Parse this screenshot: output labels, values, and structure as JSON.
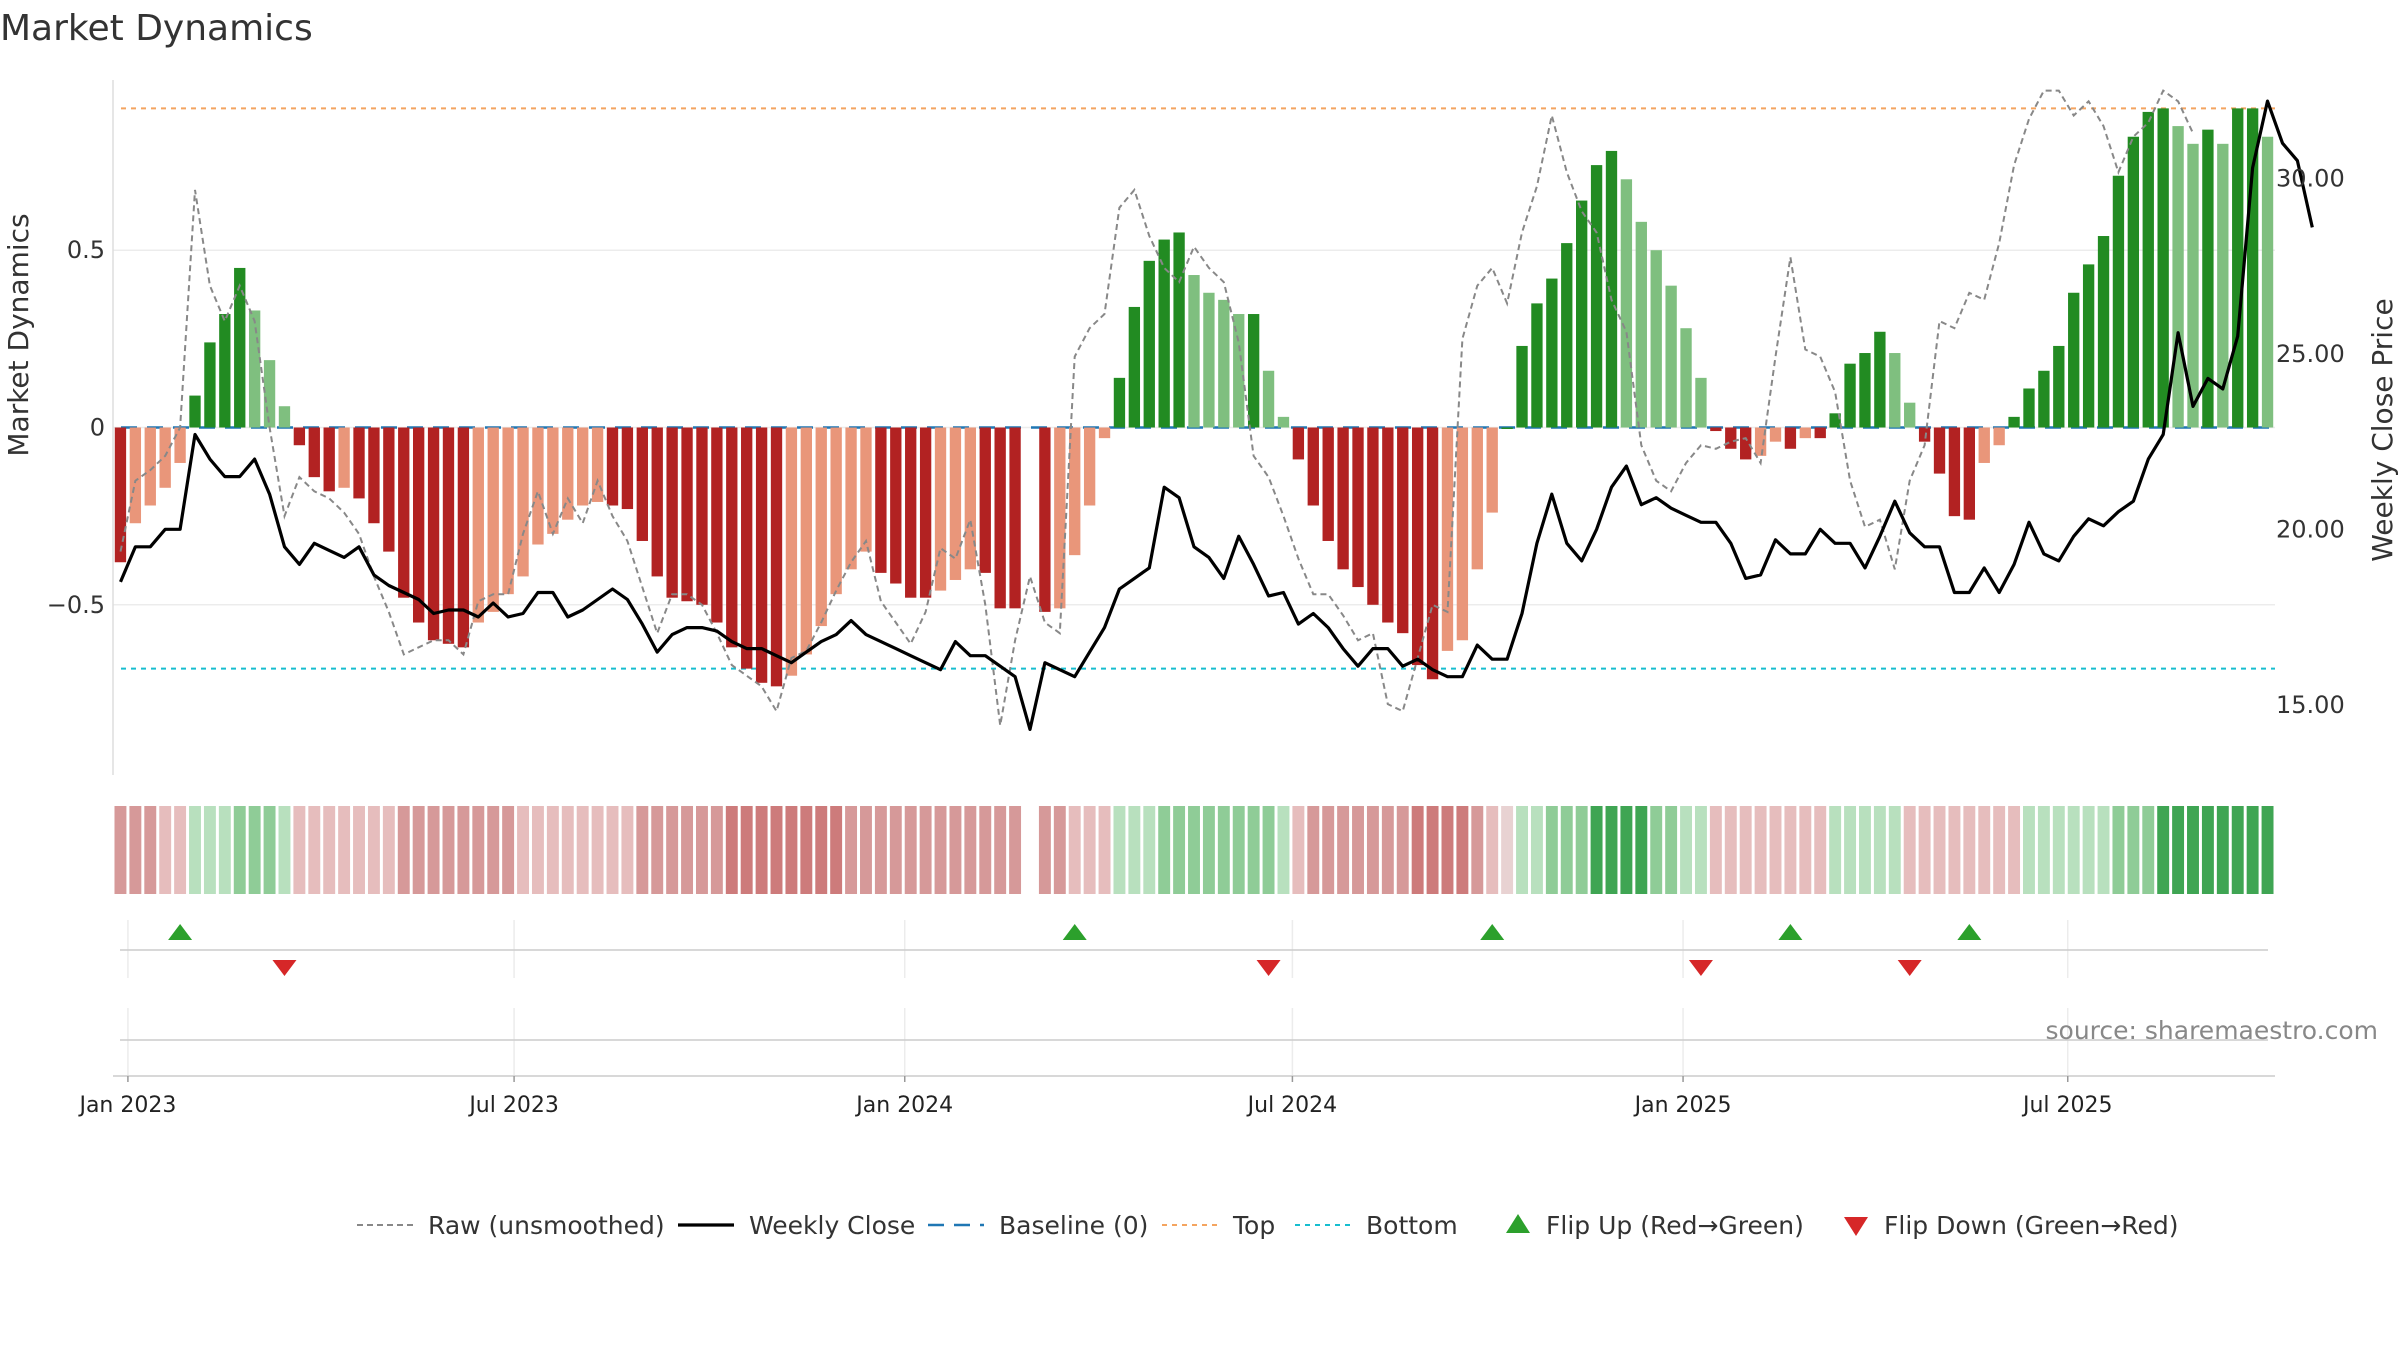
{
  "chart_data": {
    "type": "bar",
    "title": "Market Dynamics",
    "ylabel_left": "Market Dynamics",
    "ylabel_right": "Weekly Close Price",
    "ylim_left": [
      -0.98,
      0.98
    ],
    "ylim_right": [
      13.0,
      32.8
    ],
    "yticks_left": [
      {
        "value": 0.5,
        "label": "0.5"
      },
      {
        "value": 0,
        "label": "0"
      },
      {
        "value": -0.5,
        "label": "−0.5"
      }
    ],
    "yticks_right": [
      {
        "value": 30,
        "label": "30.00"
      },
      {
        "value": 25,
        "label": "25.00"
      },
      {
        "value": 20,
        "label": "20.00"
      },
      {
        "value": 15,
        "label": "15.00"
      }
    ],
    "xticks": [
      {
        "week": 0.5,
        "label": "Jan 2023"
      },
      {
        "week": 26.4,
        "label": "Jul 2023"
      },
      {
        "week": 52.6,
        "label": "Jan 2024"
      },
      {
        "week": 78.6,
        "label": "Jul 2024"
      },
      {
        "week": 104.8,
        "label": "Jan 2025"
      },
      {
        "week": 130.6,
        "label": "Jul 2025"
      }
    ],
    "top_line": 0.9,
    "bottom_line": -0.68,
    "baseline": 0,
    "bar_colors": {
      "strong_up": "#228B22",
      "weak_up": "#7FBF7F",
      "strong_down": "#B22222",
      "weak_down": "#E9967A"
    },
    "momentum": [
      -0.38,
      -0.27,
      -0.22,
      -0.17,
      -0.1,
      0.09,
      0.24,
      0.32,
      0.45,
      0.33,
      0.19,
      0.06,
      -0.05,
      -0.14,
      -0.18,
      -0.17,
      -0.2,
      -0.27,
      -0.35,
      -0.48,
      -0.55,
      -0.6,
      -0.61,
      -0.62,
      -0.55,
      -0.52,
      -0.47,
      -0.42,
      -0.33,
      -0.3,
      -0.26,
      -0.22,
      -0.21,
      -0.22,
      -0.23,
      -0.32,
      -0.42,
      -0.48,
      -0.49,
      -0.5,
      -0.55,
      -0.62,
      -0.68,
      -0.72,
      -0.73,
      -0.7,
      -0.64,
      -0.56,
      -0.47,
      -0.4,
      -0.35,
      -0.41,
      -0.44,
      -0.48,
      -0.48,
      -0.46,
      -0.43,
      -0.4,
      -0.41,
      -0.51,
      -0.51,
      null,
      -0.52,
      -0.51,
      -0.36,
      -0.22,
      -0.03,
      0.14,
      0.34,
      0.47,
      0.53,
      0.55,
      0.43,
      0.38,
      0.36,
      0.32,
      0.32,
      0.16,
      0.03,
      -0.09,
      -0.22,
      -0.32,
      -0.4,
      -0.45,
      -0.5,
      -0.55,
      -0.58,
      -0.67,
      -0.71,
      -0.63,
      -0.6,
      -0.4,
      -0.24,
      0.0,
      0.23,
      0.35,
      0.42,
      0.52,
      0.64,
      0.74,
      0.78,
      0.7,
      0.58,
      0.5,
      0.4,
      0.28,
      0.14,
      -0.01,
      -0.06,
      -0.09,
      -0.08,
      -0.04,
      -0.06,
      -0.03,
      -0.03,
      0.04,
      0.18,
      0.21,
      0.27,
      0.21,
      0.07,
      -0.04,
      -0.13,
      -0.25,
      -0.26,
      -0.1,
      -0.05,
      0.03,
      0.11,
      0.16,
      0.23,
      0.38,
      0.46,
      0.54,
      0.71,
      0.82,
      0.89,
      0.9,
      0.85,
      0.8,
      0.84,
      0.8,
      0.9,
      0.9,
      0.82
    ],
    "raw": [
      -0.35,
      -0.15,
      -0.12,
      -0.08,
      0.0,
      0.67,
      0.4,
      0.3,
      0.4,
      0.3,
      0.0,
      -0.25,
      -0.14,
      -0.18,
      -0.2,
      -0.24,
      -0.3,
      -0.42,
      -0.52,
      -0.64,
      -0.62,
      -0.6,
      -0.6,
      -0.64,
      -0.49,
      -0.47,
      -0.47,
      -0.3,
      -0.18,
      -0.3,
      -0.2,
      -0.27,
      -0.15,
      -0.25,
      -0.32,
      -0.45,
      -0.58,
      -0.47,
      -0.47,
      -0.5,
      -0.58,
      -0.67,
      -0.7,
      -0.73,
      -0.8,
      -0.65,
      -0.63,
      -0.55,
      -0.46,
      -0.38,
      -0.32,
      -0.49,
      -0.55,
      -0.61,
      -0.52,
      -0.34,
      -0.37,
      -0.26,
      -0.5,
      -0.84,
      -0.6,
      -0.42,
      -0.55,
      -0.58,
      0.2,
      0.28,
      0.32,
      0.62,
      0.67,
      0.54,
      0.45,
      0.41,
      0.51,
      0.45,
      0.41,
      0.24,
      -0.08,
      -0.14,
      -0.25,
      -0.37,
      -0.47,
      -0.47,
      -0.53,
      -0.6,
      -0.58,
      -0.78,
      -0.8,
      -0.65,
      -0.5,
      -0.52,
      0.25,
      0.4,
      0.45,
      0.35,
      0.55,
      0.68,
      0.88,
      0.72,
      0.61,
      0.55,
      0.36,
      0.27,
      -0.05,
      -0.15,
      -0.18,
      -0.1,
      -0.05,
      -0.06,
      -0.04,
      -0.03,
      -0.1,
      0.2,
      0.48,
      0.22,
      0.2,
      0.1,
      -0.15,
      -0.28,
      -0.26,
      -0.4,
      -0.15,
      -0.05,
      0.3,
      0.28,
      0.38,
      0.36,
      0.52,
      0.74,
      0.87,
      0.95,
      0.95,
      0.88,
      0.92,
      0.85,
      0.72,
      0.82,
      0.86,
      0.95,
      0.92,
      0.83
    ],
    "close": [
      18.5,
      19.5,
      19.5,
      20.0,
      20.0,
      22.7,
      22.0,
      21.5,
      21.5,
      22.0,
      21.0,
      19.5,
      19.0,
      19.6,
      19.4,
      19.2,
      19.5,
      18.7,
      18.4,
      18.2,
      18.0,
      17.6,
      17.7,
      17.7,
      17.5,
      17.9,
      17.5,
      17.6,
      18.2,
      18.2,
      17.5,
      17.7,
      18.0,
      18.3,
      18.0,
      17.3,
      16.5,
      17.0,
      17.2,
      17.2,
      17.1,
      16.8,
      16.6,
      16.6,
      16.4,
      16.2,
      16.5,
      16.8,
      17.0,
      17.4,
      17.0,
      16.8,
      16.6,
      16.4,
      16.2,
      16.0,
      16.8,
      16.4,
      16.4,
      16.1,
      15.8,
      14.3,
      16.2,
      16.0,
      15.8,
      16.5,
      17.2,
      18.3,
      18.6,
      18.9,
      21.2,
      20.9,
      19.5,
      19.2,
      18.6,
      19.8,
      19.0,
      18.1,
      18.2,
      17.3,
      17.6,
      17.2,
      16.6,
      16.1,
      16.6,
      16.6,
      16.1,
      16.3,
      16.0,
      15.8,
      15.8,
      16.7,
      16.3,
      16.3,
      17.6,
      19.6,
      21.0,
      19.6,
      19.1,
      20.0,
      21.2,
      21.8,
      20.7,
      20.9,
      20.6,
      20.4,
      20.2,
      20.2,
      19.6,
      18.6,
      18.7,
      19.7,
      19.3,
      19.3,
      20.0,
      19.6,
      19.6,
      18.9,
      19.8,
      20.8,
      19.9,
      19.5,
      19.5,
      18.2,
      18.2,
      18.9,
      18.2,
      19.0,
      20.2,
      19.3,
      19.1,
      19.8,
      20.3,
      20.1,
      20.5,
      20.8,
      22.0,
      22.7,
      25.6,
      23.5,
      24.3,
      24.0,
      25.5,
      30.3,
      32.2,
      31.0,
      30.5,
      28.6
    ],
    "state_strip": [
      -2,
      -2,
      -2,
      -1,
      -1,
      1,
      1,
      1,
      2,
      2,
      2,
      1,
      -1,
      -1,
      -1,
      -1,
      -1,
      -1,
      -1,
      -2,
      -2,
      -2,
      -2,
      -2,
      -2,
      -2,
      -2,
      -1,
      -1,
      -1,
      -1,
      -1,
      -1,
      -1,
      -1,
      -2,
      -2,
      -2,
      -2,
      -2,
      -2,
      -3,
      -3,
      -3,
      -3,
      -3,
      -3,
      -3,
      -3,
      -2,
      -2,
      -2,
      -2,
      -2,
      -2,
      -2,
      -2,
      -2,
      -2,
      -2,
      -2,
      null,
      -2,
      -2,
      -1,
      -1,
      -1,
      1,
      1,
      1,
      2,
      2,
      2,
      2,
      2,
      2,
      2,
      2,
      1,
      -1,
      -2,
      -2,
      -2,
      -2,
      -2,
      -2,
      -2,
      -3,
      -3,
      -3,
      -3,
      -2,
      -1,
      0,
      1,
      1,
      2,
      2,
      2,
      3,
      3,
      3,
      3,
      2,
      2,
      1,
      1,
      -1,
      -1,
      -1,
      -1,
      -1,
      -1,
      -1,
      -1,
      1,
      1,
      1,
      1,
      1,
      -1,
      -1,
      -1,
      -1,
      -1,
      -1,
      -1,
      -1,
      1,
      1,
      1,
      1,
      1,
      1,
      2,
      2,
      2,
      3,
      3,
      3,
      3,
      3,
      3,
      3,
      3,
      3,
      3,
      3
    ],
    "flip_up_weeks": [
      4,
      64,
      92,
      112,
      124
    ],
    "flip_down_weeks": [
      11,
      77,
      106,
      120
    ],
    "legend": [
      {
        "key": "raw",
        "label": "Raw (unsmoothed)",
        "color": "#888888"
      },
      {
        "key": "close",
        "label": "Weekly Close",
        "color": "#000000"
      },
      {
        "key": "baseline",
        "label": "Baseline (0)",
        "color": "#1f77b4"
      },
      {
        "key": "top",
        "label": "Top",
        "color": "#f4a460"
      },
      {
        "key": "bottom",
        "label": "Bottom",
        "color": "#17becf"
      },
      {
        "key": "flip_up",
        "label": "Flip Up (Red→Green)",
        "color": "#2ca02c"
      },
      {
        "key": "flip_down",
        "label": "Flip Down (Green→Red)",
        "color": "#d62728"
      }
    ],
    "source": "source: sharemaestro.com"
  }
}
